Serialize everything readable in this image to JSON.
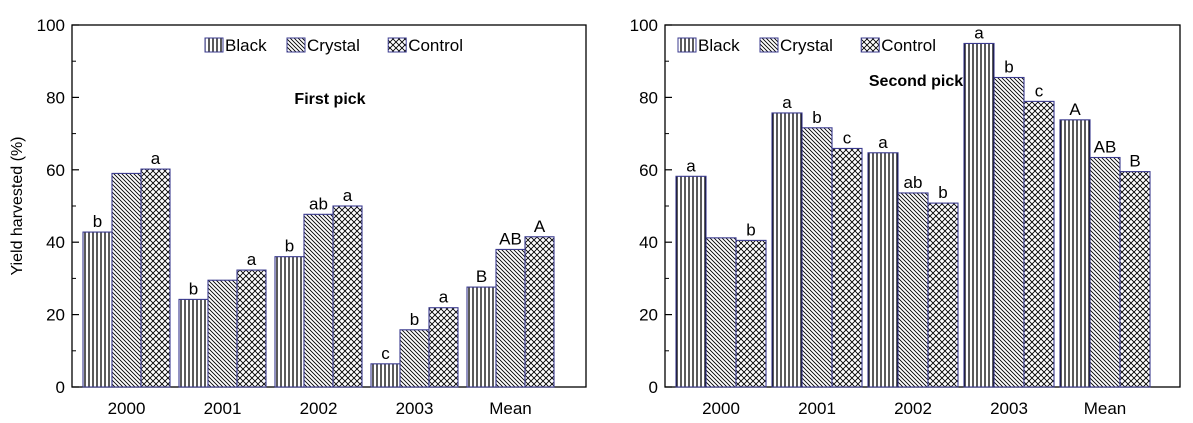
{
  "chart_data": [
    {
      "type": "bar",
      "title": "First pick",
      "xlabel": "",
      "ylabel": "Yield harvested (%)",
      "ylim": [
        0,
        100
      ],
      "yticks": [
        0,
        20,
        40,
        60,
        80,
        100
      ],
      "grid": false,
      "legend_placement": "top-center",
      "categories": [
        "2000",
        "2001",
        "2002",
        "2003",
        "Mean"
      ],
      "series": [
        {
          "name": "Black",
          "pattern": "vertical-lines",
          "values": [
            42.8,
            24.2,
            36.0,
            6.4,
            27.6
          ],
          "labels": [
            "b",
            "b",
            "b",
            "c",
            "B"
          ]
        },
        {
          "name": "Crystal",
          "pattern": "diagonal-lines",
          "values": [
            59.0,
            29.5,
            47.7,
            15.8,
            38.0
          ],
          "labels": [
            "",
            "",
            "ab",
            "b",
            "AB"
          ]
        },
        {
          "name": "Control",
          "pattern": "crosshatch",
          "values": [
            60.2,
            32.3,
            50.0,
            21.9,
            41.5
          ],
          "labels": [
            "a",
            "a",
            "a",
            "a",
            "A"
          ]
        }
      ]
    },
    {
      "type": "bar",
      "title": "Second pick",
      "xlabel": "",
      "ylabel": "",
      "ylim": [
        0,
        100
      ],
      "yticks": [
        0,
        20,
        40,
        60,
        80,
        100
      ],
      "grid": false,
      "legend_placement": "top-left",
      "categories": [
        "2000",
        "2001",
        "2002",
        "2003",
        "Mean"
      ],
      "series": [
        {
          "name": "Black",
          "pattern": "vertical-lines",
          "values": [
            58.2,
            75.7,
            64.7,
            94.9,
            73.8
          ],
          "labels": [
            "a",
            "a",
            "a",
            "a",
            "A"
          ]
        },
        {
          "name": "Crystal",
          "pattern": "diagonal-lines",
          "values": [
            41.2,
            71.6,
            53.6,
            85.5,
            63.4
          ],
          "labels": [
            "",
            "b",
            "ab",
            "b",
            "AB"
          ]
        },
        {
          "name": "Control",
          "pattern": "crosshatch",
          "values": [
            40.5,
            65.9,
            50.8,
            78.9,
            59.5
          ],
          "labels": [
            "b",
            "c",
            "b",
            "c",
            "B"
          ]
        }
      ]
    }
  ],
  "colors": {
    "bar_outline": "#000000",
    "bar_outline_accent": "#3b3b8f",
    "axis": "#000000"
  }
}
